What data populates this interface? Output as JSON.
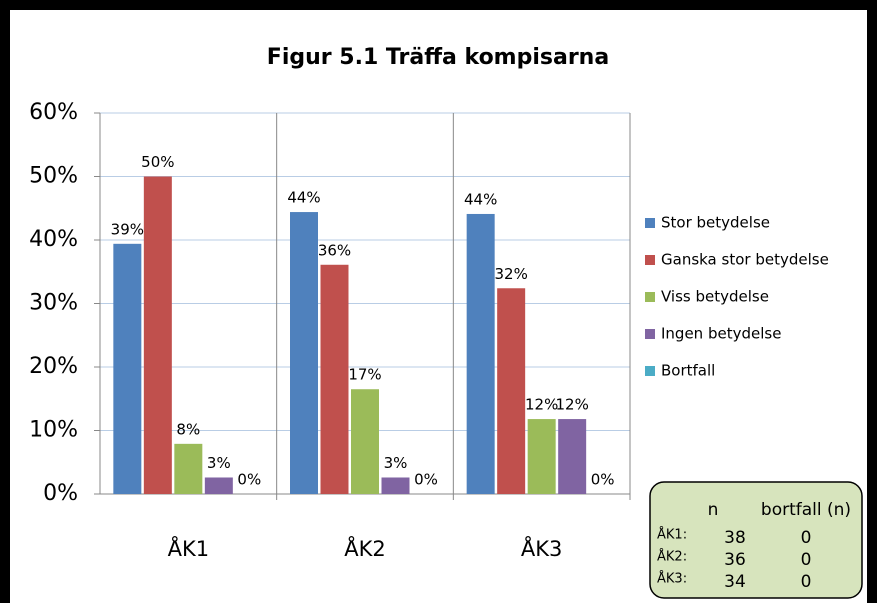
{
  "chart_data": {
    "type": "bar",
    "title": "Figur 5.1 Träffa kompisarna",
    "categories": [
      "ÅK1",
      "ÅK2",
      "ÅK3"
    ],
    "series": [
      {
        "name": "Stor betydelse",
        "color": "#4f81bd",
        "values": [
          39.4,
          44.4,
          44.1
        ],
        "value_labels": [
          "39%",
          "44%",
          "44%"
        ]
      },
      {
        "name": "Ganska stor betydelse",
        "color": "#c0504d",
        "values": [
          50,
          36.1,
          32.4
        ],
        "value_labels": [
          "50%",
          "36%",
          "32%"
        ]
      },
      {
        "name": "Viss betydelse",
        "color": "#9bbb59",
        "values": [
          7.9,
          16.5,
          11.8
        ],
        "value_labels": [
          "8%",
          "17%",
          "12%"
        ]
      },
      {
        "name": "Ingen betydelse",
        "color": "#8064a2",
        "values": [
          2.6,
          2.6,
          11.8
        ],
        "value_labels": [
          "3%",
          "3%",
          "12%"
        ]
      },
      {
        "name": "Bortfall",
        "color": "#4bacc6",
        "values": [
          0,
          0,
          0
        ],
        "value_labels": [
          "0%",
          "0%",
          "0%"
        ]
      }
    ],
    "ylim": [
      0,
      60
    ],
    "yticks": [
      {
        "value": 0,
        "label": "0%"
      },
      {
        "value": 10,
        "label": "10%"
      },
      {
        "value": 20,
        "label": "20%"
      },
      {
        "value": 30,
        "label": "30%"
      },
      {
        "value": 40,
        "label": "40%"
      },
      {
        "value": 50,
        "label": "50%"
      },
      {
        "value": 60,
        "label": "60%"
      }
    ],
    "grid": true,
    "legend": "right",
    "table": {
      "header": [
        "n",
        "bortfall (n)"
      ],
      "rows": [
        [
          "ÅK1:",
          38,
          0
        ],
        [
          "ÅK2:",
          36,
          0
        ],
        [
          "ÅK3:",
          34,
          0
        ]
      ]
    }
  }
}
